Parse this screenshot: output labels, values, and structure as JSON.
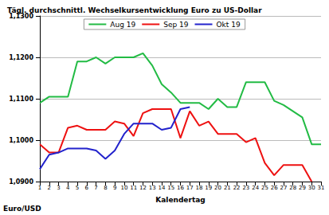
{
  "chart_data": {
    "type": "line",
    "title": "Tägl. durchschnittl. Wechselkursentwicklung Euro zu US-Dollar",
    "x_label": "Kalendertag",
    "y_label": "Euro/USD",
    "categories": [
      "1",
      "2",
      "3",
      "4",
      "5",
      "6",
      "7",
      "8",
      "9",
      "10",
      "11",
      "12",
      "13",
      "14",
      "15",
      "16",
      "17",
      "18",
      "19",
      "20",
      "21",
      "22",
      "23",
      "24",
      "25",
      "26",
      "27",
      "28",
      "29",
      "30",
      "31"
    ],
    "series": [
      {
        "name": "Aug 19",
        "color": "#22bb44",
        "values": [
          1.109,
          1.1105,
          1.1105,
          1.1105,
          1.119,
          1.119,
          1.12,
          1.1185,
          1.12,
          1.12,
          1.12,
          1.121,
          1.118,
          1.1135,
          1.1115,
          1.109,
          1.109,
          1.109,
          1.1075,
          1.11,
          1.108,
          1.108,
          1.114,
          1.114,
          1.114,
          1.1095,
          1.1085,
          1.107,
          1.1055,
          1.099,
          1.099
        ]
      },
      {
        "name": "Sep 19",
        "color": "#ee1111",
        "values": [
          1.099,
          1.097,
          1.097,
          1.103,
          1.1035,
          1.1025,
          1.1025,
          1.1025,
          1.1045,
          1.104,
          1.101,
          1.1065,
          1.1075,
          1.1075,
          1.1075,
          1.1005,
          1.107,
          1.1035,
          1.1045,
          1.1015,
          1.1015,
          1.1015,
          1.0995,
          1.1005,
          1.0945,
          1.0915,
          1.094,
          1.094,
          1.094,
          1.09,
          null
        ]
      },
      {
        "name": "Okt 19",
        "color": "#2222cc",
        "values": [
          1.093,
          1.0965,
          1.097,
          1.098,
          1.098,
          1.098,
          1.0975,
          1.0955,
          1.0975,
          1.1015,
          1.104,
          1.104,
          1.104,
          1.1025,
          1.103,
          1.1075,
          1.108,
          null,
          null,
          null,
          null,
          null,
          null,
          null,
          null,
          null,
          null,
          null,
          null,
          null,
          null
        ]
      }
    ],
    "ylim": [
      1.09,
      1.13
    ],
    "yticks": [
      {
        "value": 1.09,
        "label": "1,0900"
      },
      {
        "value": 1.1,
        "label": "1,1000"
      },
      {
        "value": 1.11,
        "label": "1,1100"
      },
      {
        "value": 1.12,
        "label": "1,1200"
      },
      {
        "value": 1.13,
        "label": "1,1300"
      }
    ],
    "grid": true,
    "legend": "top"
  }
}
